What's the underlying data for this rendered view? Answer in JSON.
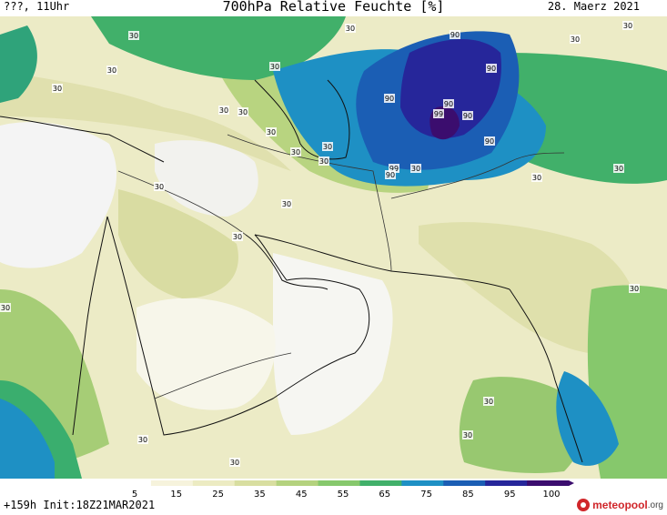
{
  "header": {
    "left_label": "???, 11Uhr",
    "title": "700hPa Relative Feuchte [%]",
    "date": "28. Maerz 2021"
  },
  "footer": {
    "run_info": "+159h  Init:18Z21MAR2021",
    "brand_name": "meteopool",
    "brand_suffix": ".org"
  },
  "legend": {
    "ticks": [
      "5",
      "15",
      "25",
      "35",
      "45",
      "55",
      "65",
      "75",
      "85",
      "95",
      "100"
    ],
    "colors": [
      "#ffffff",
      "#f6f3dc",
      "#ecebc2",
      "#d8dea0",
      "#b4d27e",
      "#86c86c",
      "#41b06a",
      "#1e90c4",
      "#1b5eb4",
      "#26269a",
      "#3b0d6e"
    ]
  },
  "map_labels": [
    {
      "text": "30"
    },
    {
      "text": "30"
    },
    {
      "text": "30"
    },
    {
      "text": "30"
    },
    {
      "text": "30"
    },
    {
      "text": "30"
    },
    {
      "text": "30"
    },
    {
      "text": "30"
    },
    {
      "text": "30"
    },
    {
      "text": "30"
    },
    {
      "text": "30"
    },
    {
      "text": "30"
    },
    {
      "text": "30"
    },
    {
      "text": "30"
    },
    {
      "text": "30"
    },
    {
      "text": "30"
    },
    {
      "text": "30"
    },
    {
      "text": "30"
    },
    {
      "text": "30"
    },
    {
      "text": "30"
    },
    {
      "text": "30"
    },
    {
      "text": "30"
    },
    {
      "text": "30"
    },
    {
      "text": "30"
    },
    {
      "text": "30"
    },
    {
      "text": "90"
    },
    {
      "text": "90"
    },
    {
      "text": "90"
    },
    {
      "text": "90"
    },
    {
      "text": "90"
    },
    {
      "text": "90"
    },
    {
      "text": "99"
    },
    {
      "text": "90"
    },
    {
      "text": "99"
    }
  ]
}
